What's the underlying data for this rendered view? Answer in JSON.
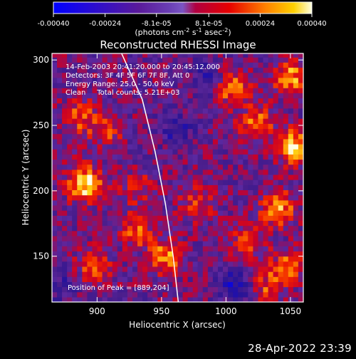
{
  "chart_data": {
    "type": "heatmap",
    "title": "Reconstructed RHESSI Image",
    "xlabel": "Heliocentric X (arcsec)",
    "ylabel": "Heliocentric Y (arcsec)",
    "xlim": [
      865,
      1060
    ],
    "ylim": [
      115,
      305
    ],
    "xticks": [
      "900",
      "950",
      "1000",
      "1050"
    ],
    "yticks": [
      "150",
      "200",
      "250",
      "300"
    ],
    "xtick_values": [
      900,
      950,
      1000,
      1050
    ],
    "ytick_values": [
      150,
      200,
      250,
      300
    ],
    "colorbar": {
      "ticks": [
        "-0.00040",
        "-0.00024",
        "-8.1e-05",
        "8.1e-05",
        "0.00024",
        "0.00040"
      ],
      "tick_values": [
        -0.0004,
        -0.00024,
        -8.1e-05,
        8.1e-05,
        0.00024,
        0.0004
      ],
      "range": [
        -0.0004,
        0.0004
      ],
      "unit_line1": "(photons cm",
      "unit_exp1": "-2",
      "unit_mid1": " s",
      "unit_exp2": "-1",
      "unit_mid2": " asec",
      "unit_exp3": "-2",
      "unit_end": ")"
    },
    "annotations": [
      "14-Feb-2003 20:41:20.000 to 20:45:12.000",
      "Detectors: 3F 4F 5F 6F 7F 8F, Att 0",
      "Energy Range: 25.0 - 50.0 keV",
      "Clean     Total counts: 5.21E+03"
    ],
    "peak_label": "Position of Peak = [889,204]",
    "peak": [
      889,
      204
    ],
    "limb_curve": [
      [
        919,
        305
      ],
      [
        935,
        270
      ],
      [
        945,
        230
      ],
      [
        953,
        190
      ],
      [
        959,
        150
      ],
      [
        963,
        115
      ]
    ],
    "bright_regions": [
      {
        "x": 889,
        "y": 204,
        "value": 0.0004
      },
      {
        "x": 1050,
        "y": 232,
        "value": 0.00036
      },
      {
        "x": 1048,
        "y": 285,
        "value": 0.0003
      },
      {
        "x": 1038,
        "y": 185,
        "value": 0.0003
      },
      {
        "x": 1003,
        "y": 278,
        "value": 0.00028
      },
      {
        "x": 1022,
        "y": 250,
        "value": 0.00026
      },
      {
        "x": 952,
        "y": 148,
        "value": 0.00028
      },
      {
        "x": 928,
        "y": 168,
        "value": 0.00024
      },
      {
        "x": 895,
        "y": 140,
        "value": 0.00022
      },
      {
        "x": 885,
        "y": 255,
        "value": 0.0002
      },
      {
        "x": 905,
        "y": 245,
        "value": 0.00018
      },
      {
        "x": 975,
        "y": 188,
        "value": 0.00018
      },
      {
        "x": 1015,
        "y": 160,
        "value": 0.0002
      },
      {
        "x": 1045,
        "y": 140,
        "value": 0.00022
      },
      {
        "x": 1030,
        "y": 125,
        "value": 0.00018
      },
      {
        "x": 930,
        "y": 200,
        "value": 0.00015
      }
    ],
    "dark_regions": [
      {
        "x": 1005,
        "y": 127,
        "value": -0.00024
      },
      {
        "x": 960,
        "y": 245,
        "value": -0.00018
      },
      {
        "x": 985,
        "y": 285,
        "value": -0.00015
      },
      {
        "x": 872,
        "y": 125,
        "value": -0.00012
      }
    ]
  },
  "timestamp": "28-Apr-2022 23:39"
}
